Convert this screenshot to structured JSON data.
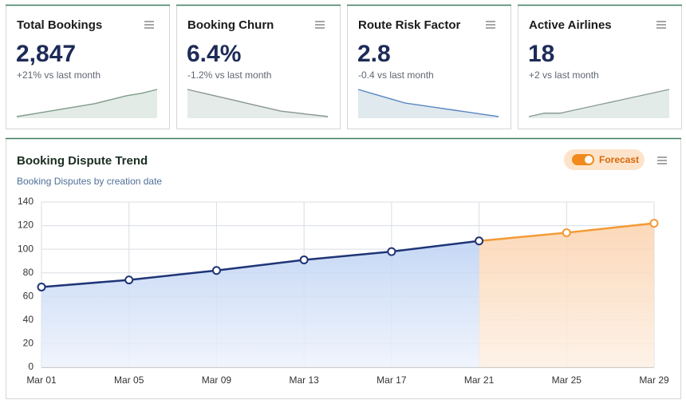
{
  "kpis": [
    {
      "title": "Total Bookings",
      "value": "2,847",
      "change": "+21% vs last month",
      "color": "#7f9a8c",
      "fill": "#e2ebe6",
      "trend": [
        10,
        12,
        14,
        16,
        18,
        20,
        23,
        26,
        28,
        31
      ]
    },
    {
      "title": "Booking Churn",
      "value": "6.4%",
      "change": "-1.2% vs last month",
      "color": "#8a9694",
      "fill": "#e4ebe8",
      "trend": [
        30,
        28,
        26,
        24,
        22,
        20,
        18,
        17,
        16,
        15
      ]
    },
    {
      "title": "Route Risk Factor",
      "value": "2.8",
      "change": "-0.4 vs last month",
      "color": "#5a86c4",
      "fill": "#dfe9ee",
      "trend": [
        30,
        28,
        26,
        24,
        23,
        22,
        21,
        20,
        19,
        18
      ]
    },
    {
      "title": "Active Airlines",
      "value": "18",
      "change": "+2 vs last month",
      "color": "#8a9a96",
      "fill": "#e3ebe8",
      "trend": [
        18,
        20,
        20,
        22,
        24,
        26,
        28,
        30,
        32,
        34
      ]
    }
  ],
  "chart_data": {
    "type": "line",
    "title": "Booking Dispute Trend",
    "subtitle": "Booking Disputes by creation date",
    "categories": [
      "Mar 01",
      "Mar 05",
      "Mar 09",
      "Mar 13",
      "Mar 17",
      "Mar 21",
      "Mar 25",
      "Mar 29"
    ],
    "series": [
      {
        "color": "#1f3577",
        "fill": "#c6d8f5",
        "values": [
          68,
          74,
          82,
          91,
          98,
          107,
          null,
          null
        ]
      },
      {
        "name": "Forecast",
        "color": "#f39a36",
        "fill": "#fbd9b8",
        "values": [
          null,
          null,
          null,
          null,
          null,
          107,
          114,
          122
        ]
      }
    ],
    "ylim": [
      0,
      140
    ],
    "yticks": [
      0,
      20,
      40,
      60,
      80,
      100,
      120,
      140
    ],
    "grid": true
  }
}
